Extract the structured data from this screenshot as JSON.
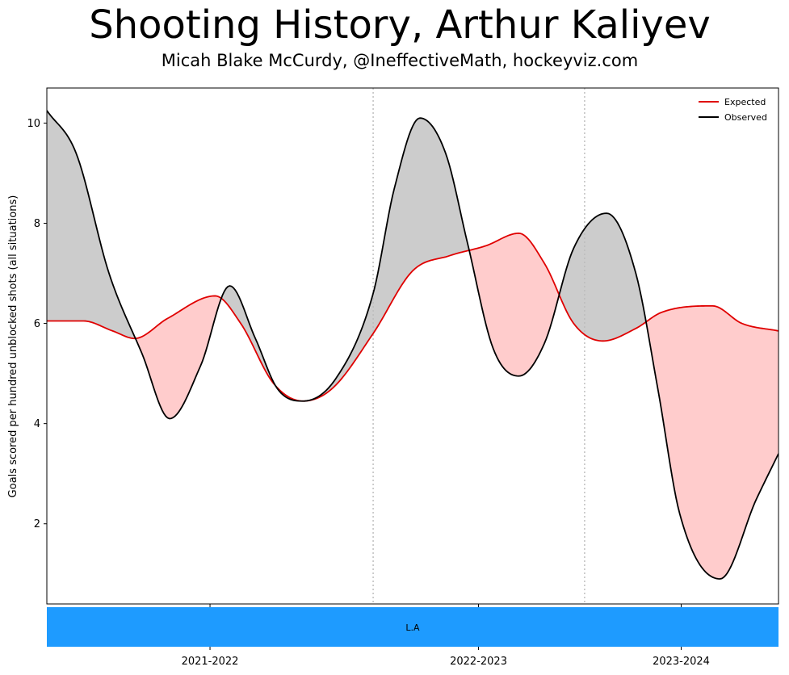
{
  "figure": {
    "title": "Shooting History, Arthur Kaliyev",
    "subtitle": "Micah Blake McCurdy, @IneffectiveMath, hockeyviz.com"
  },
  "chart_data": {
    "type": "line",
    "title": "Shooting History, Arthur Kaliyev",
    "subtitle": "Micah Blake McCurdy, @IneffectiveMath, hockeyviz.com",
    "ylabel": "Goals scored per hundred unblocked shots (all situations)",
    "ylim": [
      0.4,
      10.7
    ],
    "yticks": [
      2,
      4,
      6,
      8,
      10
    ],
    "xlim": [
      0,
      1
    ],
    "season_ticks": [
      {
        "label": "2021-2022",
        "x": 0.223
      },
      {
        "label": "2022-2023",
        "x": 0.59
      },
      {
        "label": "2023-2024",
        "x": 0.867
      }
    ],
    "season_boundaries": [
      0.446,
      0.735
    ],
    "grid": false,
    "legend_position": "top-right",
    "colors": {
      "expected": "#e00000",
      "observed": "#000000",
      "fill_above": "#cccccc",
      "fill_below": "#ffcccc",
      "team_band": "#1e9bff",
      "boundary": "#bbbbbb"
    },
    "series": [
      {
        "name": "Expected",
        "points": [
          [
            0,
            6.05
          ],
          [
            0.05,
            6.05
          ],
          [
            0.09,
            5.85
          ],
          [
            0.12,
            5.7
          ],
          [
            0.165,
            6.1
          ],
          [
            0.23,
            6.55
          ],
          [
            0.265,
            6.0
          ],
          [
            0.31,
            4.8
          ],
          [
            0.35,
            4.45
          ],
          [
            0.39,
            4.7
          ],
          [
            0.446,
            5.8
          ],
          [
            0.5,
            7.05
          ],
          [
            0.55,
            7.35
          ],
          [
            0.6,
            7.55
          ],
          [
            0.645,
            7.8
          ],
          [
            0.68,
            7.2
          ],
          [
            0.72,
            6.0
          ],
          [
            0.76,
            5.65
          ],
          [
            0.805,
            5.9
          ],
          [
            0.84,
            6.22
          ],
          [
            0.91,
            6.35
          ],
          [
            0.95,
            6.0
          ],
          [
            1.0,
            5.85
          ]
        ]
      },
      {
        "name": "Observed",
        "points": [
          [
            0,
            10.25
          ],
          [
            0.04,
            9.4
          ],
          [
            0.085,
            7.0
          ],
          [
            0.13,
            5.4
          ],
          [
            0.168,
            4.1
          ],
          [
            0.21,
            5.15
          ],
          [
            0.25,
            6.75
          ],
          [
            0.285,
            5.7
          ],
          [
            0.315,
            4.7
          ],
          [
            0.35,
            4.45
          ],
          [
            0.395,
            4.9
          ],
          [
            0.446,
            6.6
          ],
          [
            0.475,
            8.7
          ],
          [
            0.51,
            10.1
          ],
          [
            0.545,
            9.4
          ],
          [
            0.575,
            7.6
          ],
          [
            0.61,
            5.5
          ],
          [
            0.645,
            4.95
          ],
          [
            0.68,
            5.6
          ],
          [
            0.72,
            7.5
          ],
          [
            0.765,
            8.2
          ],
          [
            0.805,
            7.0
          ],
          [
            0.835,
            4.7
          ],
          [
            0.865,
            2.2
          ],
          [
            0.92,
            0.9
          ],
          [
            0.97,
            2.5
          ],
          [
            1.0,
            3.4
          ]
        ]
      }
    ],
    "team_band": {
      "label": "L.A"
    }
  }
}
